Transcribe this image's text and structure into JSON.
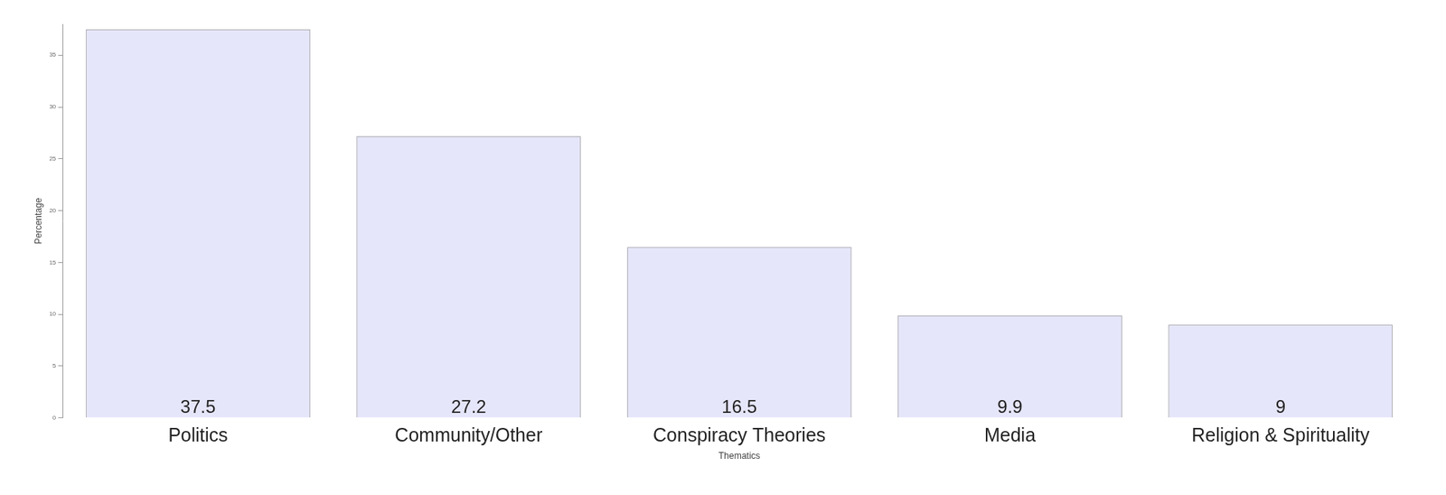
{
  "chart_data": {
    "type": "bar",
    "categories": [
      "Politics",
      "Community/Other",
      "Conspiracy Theories",
      "Media",
      "Religion & Spirituality"
    ],
    "values": [
      37.5,
      27.2,
      16.5,
      9.9,
      9
    ],
    "color": "#e6e6fa",
    "x_label": "Thematics",
    "y_label": "Percentage",
    "ylim": [
      0,
      38
    ],
    "yticks": [
      0,
      5,
      10,
      15,
      20,
      25,
      30,
      35
    ],
    "grid": false,
    "data_labels": true
  }
}
